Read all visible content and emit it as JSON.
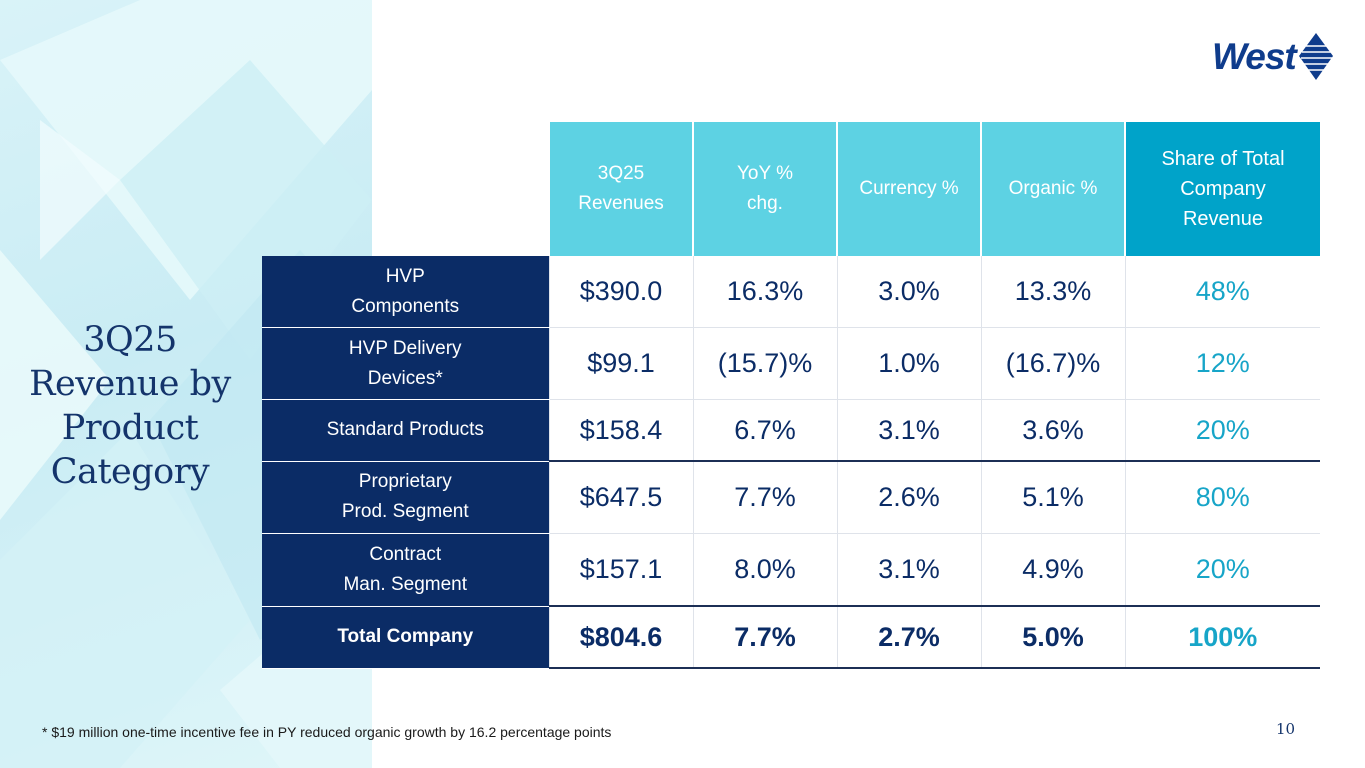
{
  "title_lines": [
    "3Q25",
    "Revenue by",
    "Product",
    "Category"
  ],
  "logo": {
    "text": "West",
    "brand_color": "#0f3c8c"
  },
  "table": {
    "headers": [
      "3Q25\nRevenues",
      "YoY %\nchg.",
      "Currency %",
      "Organic %",
      "Share of Total\nCompany\nRevenue"
    ],
    "rows": [
      {
        "label": "HVP\nComponents",
        "values": [
          "$390.0",
          "16.3%",
          "3.0%",
          "13.3%",
          "48%"
        ]
      },
      {
        "label": "HVP Delivery\nDevices*",
        "values": [
          "$99.1",
          "(15.7)%",
          "1.0%",
          "(16.7)%",
          "12%"
        ]
      },
      {
        "label": "Standard Products",
        "values": [
          "$158.4",
          "6.7%",
          "3.1%",
          "3.6%",
          "20%"
        ]
      },
      {
        "label": "Proprietary\nProd. Segment",
        "values": [
          "$647.5",
          "7.7%",
          "2.6%",
          "5.1%",
          "80%"
        ]
      },
      {
        "label": "Contract\nMan. Segment",
        "values": [
          "$157.1",
          "8.0%",
          "3.1%",
          "4.9%",
          "20%"
        ]
      },
      {
        "label": "Total Company",
        "values": [
          "$804.6",
          "7.7%",
          "2.7%",
          "5.0%",
          "100%"
        ]
      }
    ]
  },
  "footnote": "* $19 million one-time incentive fee in PY reduced organic growth by 16.2 percentage points",
  "page_number": "10",
  "colors": {
    "navy": "#0b2c66",
    "header_cyan": "#5dd2e3",
    "header_share": "#00a3c9",
    "share_text": "#17a5c8"
  }
}
